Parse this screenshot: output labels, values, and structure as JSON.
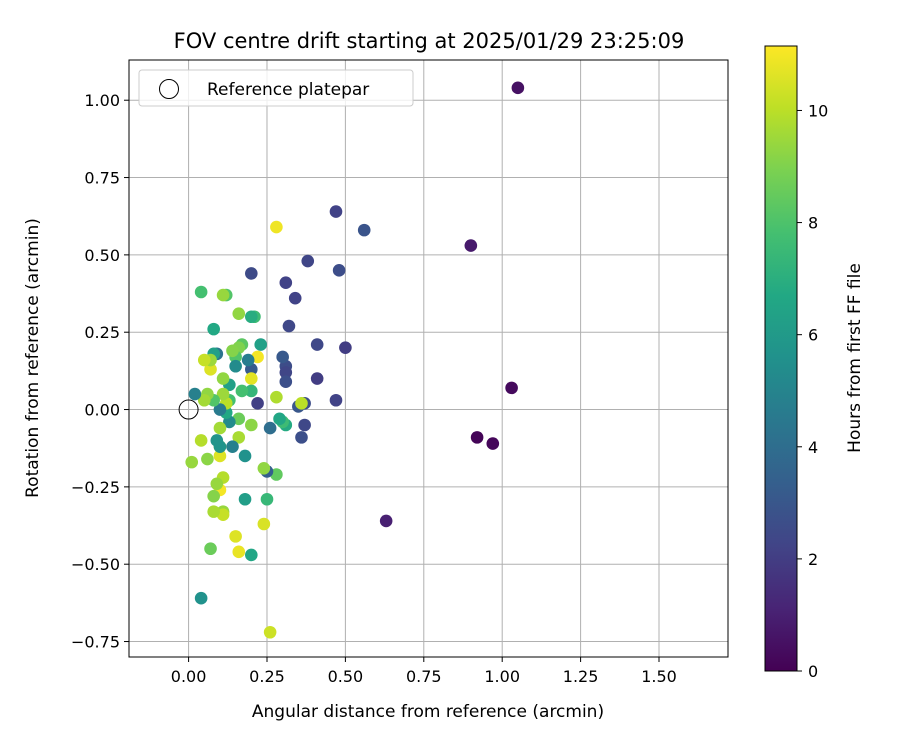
{
  "chart_data": {
    "type": "scatter",
    "title": "FOV centre drift starting at 2025/01/29 23:25:09",
    "xlabel": "Angular distance from reference (arcmin)",
    "ylabel": "Rotation from reference (arcmin)",
    "xlim": [
      -0.19,
      1.72
    ],
    "ylim": [
      -0.8,
      1.13
    ],
    "xticks": [
      "0.00",
      "0.25",
      "0.50",
      "0.75",
      "1.00",
      "1.25",
      "1.50"
    ],
    "yticks": [
      "-0.75",
      "-0.50",
      "-0.25",
      "0.00",
      "0.25",
      "0.50",
      "0.75",
      "1.00"
    ],
    "grid": true,
    "legend": {
      "placement": "top-left",
      "entries": [
        "Reference platepar"
      ]
    },
    "reference_point": {
      "x": 0.0,
      "y": 0.0
    },
    "colorbar": {
      "label": "Hours from first FF file",
      "range": [
        0,
        11.15
      ],
      "ticks": [
        "0",
        "2",
        "4",
        "6",
        "8",
        "10"
      ],
      "colormap": "viridis"
    },
    "points": [
      {
        "x": 1.05,
        "y": 1.04,
        "h": 0.5
      },
      {
        "x": 1.03,
        "y": 0.07,
        "h": 0.3
      },
      {
        "x": 0.97,
        "y": -0.11,
        "h": 0.2
      },
      {
        "x": 0.92,
        "y": -0.09,
        "h": 0.1
      },
      {
        "x": 0.9,
        "y": 0.53,
        "h": 0.8
      },
      {
        "x": 0.63,
        "y": -0.36,
        "h": 1.0
      },
      {
        "x": 0.56,
        "y": 0.58,
        "h": 2.9
      },
      {
        "x": 0.48,
        "y": 0.45,
        "h": 2.6
      },
      {
        "x": 0.47,
        "y": 0.64,
        "h": 2.2
      },
      {
        "x": 0.5,
        "y": 0.2,
        "h": 2.0
      },
      {
        "x": 0.47,
        "y": 0.03,
        "h": 2.2
      },
      {
        "x": 0.41,
        "y": 0.21,
        "h": 2.4
      },
      {
        "x": 0.41,
        "y": 0.1,
        "h": 2.0
      },
      {
        "x": 0.38,
        "y": 0.48,
        "h": 2.3
      },
      {
        "x": 0.37,
        "y": 0.02,
        "h": 2.6
      },
      {
        "x": 0.37,
        "y": -0.05,
        "h": 2.4
      },
      {
        "x": 0.36,
        "y": -0.09,
        "h": 2.7
      },
      {
        "x": 0.35,
        "y": 0.01,
        "h": 3.0
      },
      {
        "x": 0.36,
        "y": 0.02,
        "h": 10.0
      },
      {
        "x": 0.34,
        "y": 0.36,
        "h": 2.2
      },
      {
        "x": 0.32,
        "y": 0.27,
        "h": 2.4
      },
      {
        "x": 0.31,
        "y": 0.41,
        "h": 2.2
      },
      {
        "x": 0.31,
        "y": 0.14,
        "h": 2.6
      },
      {
        "x": 0.31,
        "y": 0.12,
        "h": 2.3
      },
      {
        "x": 0.31,
        "y": 0.09,
        "h": 2.7
      },
      {
        "x": 0.3,
        "y": 0.17,
        "h": 3.1
      },
      {
        "x": 0.31,
        "y": -0.05,
        "h": 6.8
      },
      {
        "x": 0.3,
        "y": -0.04,
        "h": 7.6
      },
      {
        "x": 0.29,
        "y": -0.03,
        "h": 6.6
      },
      {
        "x": 0.28,
        "y": 0.59,
        "h": 10.9
      },
      {
        "x": 0.28,
        "y": 0.04,
        "h": 9.8
      },
      {
        "x": 0.28,
        "y": -0.21,
        "h": 8.4
      },
      {
        "x": 0.26,
        "y": -0.06,
        "h": 4.0
      },
      {
        "x": 0.26,
        "y": -0.72,
        "h": 10.3
      },
      {
        "x": 0.25,
        "y": -0.2,
        "h": 3.3
      },
      {
        "x": 0.25,
        "y": -0.29,
        "h": 7.4
      },
      {
        "x": 0.24,
        "y": -0.19,
        "h": 9.3
      },
      {
        "x": 0.24,
        "y": -0.37,
        "h": 10.5
      },
      {
        "x": 0.23,
        "y": 0.21,
        "h": 6.3
      },
      {
        "x": 0.22,
        "y": 0.17,
        "h": 11.0
      },
      {
        "x": 0.22,
        "y": 0.02,
        "h": 2.1
      },
      {
        "x": 0.21,
        "y": 0.3,
        "h": 7.6
      },
      {
        "x": 0.2,
        "y": 0.44,
        "h": 2.5
      },
      {
        "x": 0.2,
        "y": 0.3,
        "h": 6.9
      },
      {
        "x": 0.2,
        "y": 0.13,
        "h": 3.2
      },
      {
        "x": 0.2,
        "y": 0.1,
        "h": 10.7
      },
      {
        "x": 0.2,
        "y": 0.06,
        "h": 7.3
      },
      {
        "x": 0.2,
        "y": -0.05,
        "h": 9.2
      },
      {
        "x": 0.2,
        "y": -0.47,
        "h": 6.6
      },
      {
        "x": 0.19,
        "y": 0.16,
        "h": 4.7
      },
      {
        "x": 0.18,
        "y": -0.15,
        "h": 5.6
      },
      {
        "x": 0.18,
        "y": -0.29,
        "h": 6.2
      },
      {
        "x": 0.17,
        "y": 0.06,
        "h": 7.8
      },
      {
        "x": 0.17,
        "y": 0.21,
        "h": 8.3
      },
      {
        "x": 0.16,
        "y": 0.2,
        "h": 9.0
      },
      {
        "x": 0.16,
        "y": 0.31,
        "h": 9.3
      },
      {
        "x": 0.16,
        "y": -0.03,
        "h": 8.6
      },
      {
        "x": 0.16,
        "y": -0.09,
        "h": 9.7
      },
      {
        "x": 0.16,
        "y": -0.46,
        "h": 10.8
      },
      {
        "x": 0.15,
        "y": -0.41,
        "h": 10.6
      },
      {
        "x": 0.15,
        "y": 0.17,
        "h": 8.1
      },
      {
        "x": 0.15,
        "y": 0.14,
        "h": 5.3
      },
      {
        "x": 0.14,
        "y": 0.19,
        "h": 9.1
      },
      {
        "x": 0.14,
        "y": -0.12,
        "h": 4.8
      },
      {
        "x": 0.13,
        "y": 0.08,
        "h": 6.3
      },
      {
        "x": 0.13,
        "y": 0.03,
        "h": 7.8
      },
      {
        "x": 0.13,
        "y": -0.04,
        "h": 5.3
      },
      {
        "x": 0.12,
        "y": 0.37,
        "h": 8.1
      },
      {
        "x": 0.12,
        "y": -0.01,
        "h": 6.7
      },
      {
        "x": 0.12,
        "y": 0.02,
        "h": 10.0
      },
      {
        "x": 0.11,
        "y": 0.37,
        "h": 9.4
      },
      {
        "x": 0.11,
        "y": 0.1,
        "h": 9.3
      },
      {
        "x": 0.11,
        "y": 0.05,
        "h": 9.5
      },
      {
        "x": 0.11,
        "y": -0.22,
        "h": 9.9
      },
      {
        "x": 0.11,
        "y": -0.33,
        "h": 9.4
      },
      {
        "x": 0.11,
        "y": -0.34,
        "h": 10.2
      },
      {
        "x": 0.1,
        "y": -0.12,
        "h": 10.5
      },
      {
        "x": 0.1,
        "y": -0.15,
        "h": 10.6
      },
      {
        "x": 0.1,
        "y": -0.26,
        "h": 11.0
      },
      {
        "x": 0.1,
        "y": 0.0,
        "h": 4.6
      },
      {
        "x": 0.1,
        "y": -0.06,
        "h": 9.6
      },
      {
        "x": 0.1,
        "y": -0.12,
        "h": 5.7
      },
      {
        "x": 0.09,
        "y": 0.18,
        "h": 4.3
      },
      {
        "x": 0.09,
        "y": -0.24,
        "h": 9.4
      },
      {
        "x": 0.09,
        "y": -0.1,
        "h": 5.7
      },
      {
        "x": 0.08,
        "y": 0.26,
        "h": 6.7
      },
      {
        "x": 0.08,
        "y": 0.18,
        "h": 6.3
      },
      {
        "x": 0.08,
        "y": 0.03,
        "h": 8.1
      },
      {
        "x": 0.08,
        "y": -0.28,
        "h": 9.1
      },
      {
        "x": 0.08,
        "y": -0.33,
        "h": 9.7
      },
      {
        "x": 0.07,
        "y": 0.13,
        "h": 10.6
      },
      {
        "x": 0.07,
        "y": 0.16,
        "h": 9.5
      },
      {
        "x": 0.07,
        "y": -0.45,
        "h": 8.6
      },
      {
        "x": 0.06,
        "y": 0.05,
        "h": 9.3
      },
      {
        "x": 0.06,
        "y": -0.16,
        "h": 9.2
      },
      {
        "x": 0.05,
        "y": 0.03,
        "h": 9.6
      },
      {
        "x": 0.05,
        "y": 0.16,
        "h": 10.2
      },
      {
        "x": 0.04,
        "y": 0.38,
        "h": 7.8
      },
      {
        "x": 0.04,
        "y": -0.1,
        "h": 9.9
      },
      {
        "x": 0.04,
        "y": -0.61,
        "h": 5.6
      },
      {
        "x": 0.02,
        "y": 0.05,
        "h": 4.8
      },
      {
        "x": 0.01,
        "y": -0.17,
        "h": 9.4
      }
    ]
  }
}
